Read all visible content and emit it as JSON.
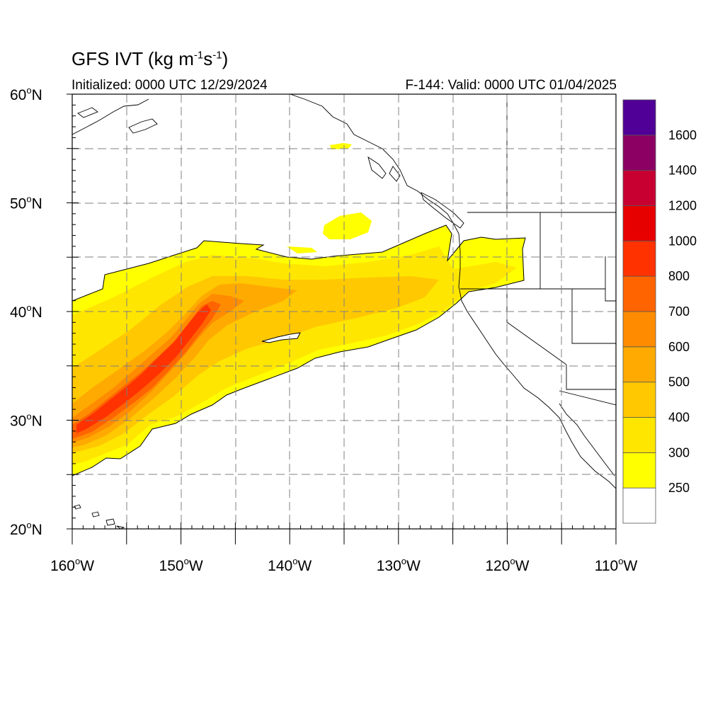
{
  "title": {
    "main": "GFS IVT (kg m",
    "sup1": "-1",
    "mid": "s",
    "sup2": "-1",
    "close": ")"
  },
  "initialized": "Initialized: 0000 UTC 12/29/2024",
  "valid": "F-144: Valid: 0000 UTC 01/04/2025",
  "map": {
    "extent": {
      "lon": [
        -160,
        -110
      ],
      "lat": [
        20,
        60
      ]
    },
    "grid": "dashed",
    "lat_ticks": [
      "20",
      "30",
      "40",
      "50",
      "60"
    ],
    "lon_ticks": [
      "160",
      "150",
      "140",
      "130",
      "120",
      "110"
    ],
    "degree_symbol": "o",
    "hemi_lat": "N",
    "hemi_lon": "W"
  },
  "colorbar": {
    "labels": [
      "250",
      "300",
      "400",
      "500",
      "600",
      "700",
      "800",
      "1000",
      "1200",
      "1400",
      "1600"
    ],
    "colors": [
      "#ffffff",
      "#ffff00",
      "#ffe600",
      "#ffc800",
      "#ffaa00",
      "#ff8c00",
      "#ff6400",
      "#ff3200",
      "#e60000",
      "#c80032",
      "#8c0064",
      "#500096"
    ]
  },
  "ivt_field": {
    "description_levels": [
      "250",
      "300",
      "400",
      "500",
      "600",
      "700"
    ],
    "colors": {
      "250": "#ffff00",
      "300": "#ffe600",
      "400": "#ffc800",
      "500": "#ffaa00",
      "600": "#ff8c00",
      "700": "#ff6400",
      "800": "#ff3200"
    }
  }
}
